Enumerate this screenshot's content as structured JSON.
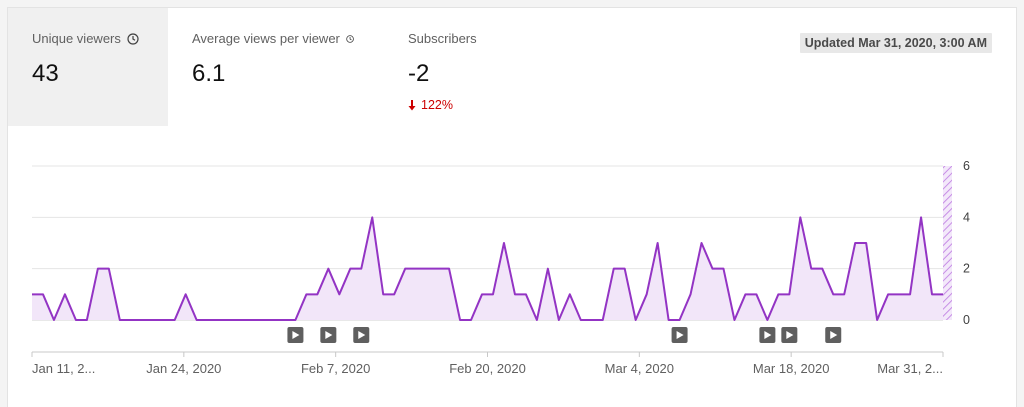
{
  "metrics": [
    {
      "label": "Unique viewers",
      "value": "43",
      "info_icon": "clock-icon",
      "selected": true
    },
    {
      "label": "Average views per viewer",
      "value": "6.1",
      "info_icon": "clock-icon",
      "selected": false
    },
    {
      "label": "Subscribers",
      "value": "-2",
      "change": "122%",
      "change_direction": "down",
      "change_color": "#cc0000"
    }
  ],
  "updated": "Updated Mar 31, 2020, 3:00 AM",
  "chart_data": {
    "type": "area",
    "series": [
      {
        "color": "#9334c4",
        "values": [
          1,
          1,
          0,
          1,
          0,
          0,
          2,
          2,
          0,
          0,
          0,
          0,
          0,
          0,
          1,
          0,
          0,
          0,
          0,
          0,
          0,
          0,
          0,
          0,
          0,
          1,
          1,
          2,
          1,
          2,
          2,
          4,
          1,
          1,
          2,
          2,
          2,
          2,
          2,
          0,
          0,
          1,
          1,
          3,
          1,
          1,
          0,
          2,
          0,
          1,
          0,
          0,
          0,
          2,
          2,
          0,
          1,
          3,
          0,
          0,
          1,
          3,
          2,
          2,
          0,
          1,
          1,
          0,
          1,
          1,
          4,
          2,
          2,
          1,
          1,
          3,
          3,
          0,
          1,
          1,
          1,
          4,
          1,
          1
        ]
      }
    ],
    "x_tick_labels": [
      "Jan 11, 2...",
      "Jan 24, 2020",
      "Feb 7, 2020",
      "Feb 20, 2020",
      "Mar 4, 2020",
      "Mar 18, 2020",
      "Mar 31, 2..."
    ],
    "y_ticks": [
      "0",
      "2",
      "4",
      "6"
    ],
    "ylim": [
      0,
      6
    ],
    "y_axis_side": "right",
    "grid": true,
    "video_markers": [
      24,
      27,
      30,
      59,
      67,
      69,
      73
    ],
    "partial_final_period_hatched": true
  }
}
